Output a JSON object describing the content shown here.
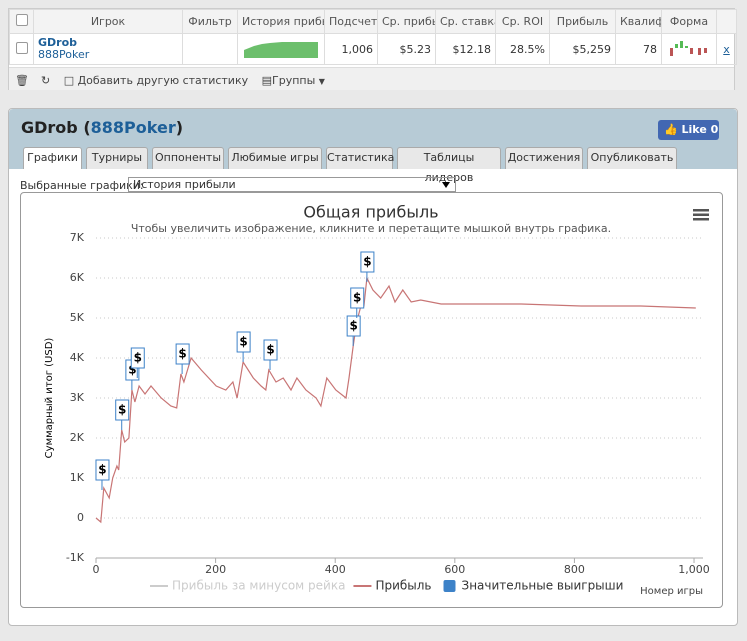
{
  "table": {
    "headers": [
      "Игрок",
      "Фильтр",
      "История прибы",
      "Подсчет",
      "Ср. прибы",
      "Ср. ставка",
      "Ср. ROI",
      "Прибыль",
      "Квалиф",
      "Форма"
    ],
    "row": {
      "player": "GDrob",
      "site": "888Poker",
      "count": "1,006",
      "avg_profit": "$5.23",
      "avg_stake": "$12.18",
      "roi": "28.5%",
      "profit": "$5,259",
      "qualified": "78",
      "remove": "x"
    }
  },
  "toolbar": {
    "add_stat": "Добавить другую статистику",
    "groups": "Группы"
  },
  "panel": {
    "name": "GDrob",
    "open": "(",
    "site": "888Poker",
    "close": ")",
    "like": "Like",
    "like_count": "0",
    "tabs": [
      "Графики",
      "Турниры",
      "Оппоненты",
      "Любимые игры",
      "Статистика",
      "Таблицы лидеров",
      "Достижения",
      "Опубликовать"
    ],
    "select_label": "Выбранные графики:",
    "select_value": "История прибыли"
  },
  "chart_data": {
    "type": "line",
    "title": "Общая прибыль",
    "subtitle": "Чтобы увеличить изображение, кликните и перетащите мышкой внутрь графика.",
    "y_label": "Суммарный итог (USD)",
    "x_label": "Номер игры",
    "xlim": [
      0,
      1015
    ],
    "xticks": [
      0,
      200,
      400,
      600,
      800,
      {
        "value": 1000,
        "label": "1,000"
      }
    ],
    "ylim": [
      -1000,
      7000
    ],
    "yticks": [
      {
        "value": -1000,
        "label": "-1K"
      },
      0,
      {
        "value": 1000,
        "label": "1K"
      },
      {
        "value": 2000,
        "label": "2K"
      },
      {
        "value": 3000,
        "label": "3K"
      },
      {
        "value": 4000,
        "label": "4K"
      },
      {
        "value": 5000,
        "label": "5K"
      },
      {
        "value": 6000,
        "label": "6K"
      },
      {
        "value": 7000,
        "label": "7K"
      }
    ],
    "grid": true,
    "legend": "bottom",
    "series": [
      {
        "name": "Прибыль за минусом рейка",
        "color": "#cccccc",
        "visible": false,
        "x": [],
        "values": []
      },
      {
        "name": "Прибыль",
        "color": "#c87575",
        "visible": true,
        "x": [
          0,
          8,
          13,
          22,
          28,
          35,
          38,
          43,
          48,
          55,
          60,
          65,
          72,
          82,
          92,
          109,
          125,
          135,
          142,
          147,
          159,
          176,
          201,
          217,
          229,
          236,
          246,
          263,
          276,
          284,
          289,
          301,
          313,
          326,
          336,
          351,
          368,
          376,
          386,
          401,
          418,
          423,
          430,
          436,
          443,
          448,
          453,
          463,
          476,
          490,
          500,
          513,
          527,
          543,
          577,
          627,
          711,
          811,
          911,
          1003
        ],
        "values": [
          0,
          -100,
          750,
          500,
          1000,
          1300,
          1200,
          2200,
          1900,
          2000,
          3200,
          2900,
          3300,
          3100,
          3300,
          3000,
          2800,
          2750,
          3600,
          3400,
          4000,
          3700,
          3300,
          3200,
          3400,
          3000,
          3900,
          3500,
          3300,
          3200,
          3700,
          3400,
          3500,
          3200,
          3500,
          3200,
          3000,
          2800,
          3500,
          3200,
          3000,
          3500,
          4300,
          4900,
          5300,
          5300,
          6000,
          5700,
          5500,
          5800,
          5400,
          5700,
          5400,
          5450,
          5350,
          5350,
          5350,
          5300,
          5300,
          5250
        ]
      },
      {
        "name": "Значительные выигрыши",
        "color": "#3d82c8",
        "visible": true,
        "marker_label": "$",
        "x": [
          10,
          43,
          60,
          69,
          144,
          246,
          291,
          430,
          436,
          453
        ],
        "values": [
          700,
          2200,
          3200,
          3500,
          3600,
          3900,
          3700,
          4300,
          5000,
          5900
        ]
      }
    ]
  }
}
